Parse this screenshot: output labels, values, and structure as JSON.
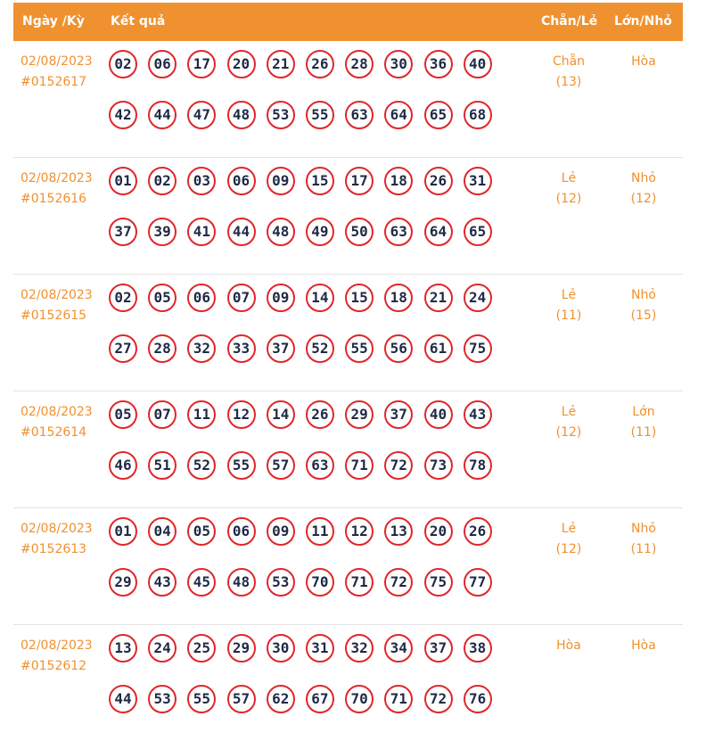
{
  "header": {
    "date": "Ngày /Kỳ",
    "result": "Kết quả",
    "chan_le": "Chẵn/Lẻ",
    "lon_nho": "Lớn/Nhỏ"
  },
  "rows": [
    {
      "date": "02/08/2023",
      "ky": "#0152617",
      "numbers": [
        "02",
        "06",
        "17",
        "20",
        "21",
        "26",
        "28",
        "30",
        "36",
        "40",
        "42",
        "44",
        "47",
        "48",
        "53",
        "55",
        "63",
        "64",
        "65",
        "68"
      ],
      "chan_le": "Chẵn",
      "chan_le_count": "(13)",
      "lon_nho": "Hòa",
      "lon_nho_count": ""
    },
    {
      "date": "02/08/2023",
      "ky": "#0152616",
      "numbers": [
        "01",
        "02",
        "03",
        "06",
        "09",
        "15",
        "17",
        "18",
        "26",
        "31",
        "37",
        "39",
        "41",
        "44",
        "48",
        "49",
        "50",
        "63",
        "64",
        "65"
      ],
      "chan_le": "Lẻ",
      "chan_le_count": "(12)",
      "lon_nho": "Nhỏ",
      "lon_nho_count": "(12)"
    },
    {
      "date": "02/08/2023",
      "ky": "#0152615",
      "numbers": [
        "02",
        "05",
        "06",
        "07",
        "09",
        "14",
        "15",
        "18",
        "21",
        "24",
        "27",
        "28",
        "32",
        "33",
        "37",
        "52",
        "55",
        "56",
        "61",
        "75"
      ],
      "chan_le": "Lẻ",
      "chan_le_count": "(11)",
      "lon_nho": "Nhỏ",
      "lon_nho_count": "(15)"
    },
    {
      "date": "02/08/2023",
      "ky": "#0152614",
      "numbers": [
        "05",
        "07",
        "11",
        "12",
        "14",
        "26",
        "29",
        "37",
        "40",
        "43",
        "46",
        "51",
        "52",
        "55",
        "57",
        "63",
        "71",
        "72",
        "73",
        "78"
      ],
      "chan_le": "Lẻ",
      "chan_le_count": "(12)",
      "lon_nho": "Lớn",
      "lon_nho_count": "(11)"
    },
    {
      "date": "02/08/2023",
      "ky": "#0152613",
      "numbers": [
        "01",
        "04",
        "05",
        "06",
        "09",
        "11",
        "12",
        "13",
        "20",
        "26",
        "29",
        "43",
        "45",
        "48",
        "53",
        "70",
        "71",
        "72",
        "75",
        "77"
      ],
      "chan_le": "Lẻ",
      "chan_le_count": "(12)",
      "lon_nho": "Nhỏ",
      "lon_nho_count": "(11)"
    },
    {
      "date": "02/08/2023",
      "ky": "#0152612",
      "numbers": [
        "13",
        "24",
        "25",
        "29",
        "30",
        "31",
        "32",
        "34",
        "37",
        "38",
        "44",
        "53",
        "55",
        "57",
        "62",
        "67",
        "70",
        "71",
        "72",
        "76"
      ],
      "chan_le": "Hòa",
      "chan_le_count": "",
      "lon_nho": "Hòa",
      "lon_nho_count": ""
    }
  ],
  "colors": {
    "accent": "#f0912f",
    "ball_border": "#e0262a",
    "ball_text": "#1f2a44"
  }
}
